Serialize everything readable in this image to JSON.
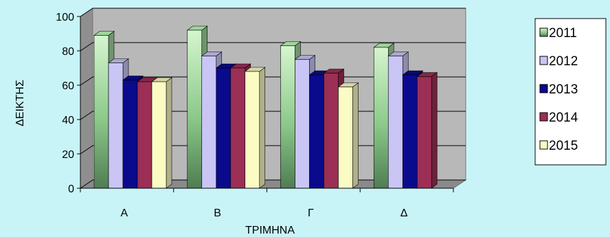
{
  "chart_data": {
    "type": "bar",
    "title": "",
    "xlabel": "ΤΡΙΜΗΝΑ",
    "ylabel": "ΔΕΙΚΤΗΣ",
    "ylim": [
      0,
      100
    ],
    "yticks": [
      0,
      20,
      40,
      60,
      80,
      100
    ],
    "categories": [
      "Α",
      "Β",
      "Γ",
      "Δ"
    ],
    "series": [
      {
        "name": "2011",
        "values": [
          89,
          92,
          83,
          82
        ]
      },
      {
        "name": "2012",
        "values": [
          73,
          77,
          75,
          77
        ]
      },
      {
        "name": "2013",
        "values": [
          63,
          70,
          66,
          66
        ]
      },
      {
        "name": "2014",
        "values": [
          62,
          70,
          67,
          65
        ]
      },
      {
        "name": "2015",
        "values": [
          62,
          68,
          59,
          null
        ]
      }
    ],
    "grid": true,
    "legend_position": "right",
    "series_colors": [
      "#9fd49c",
      "#c9c6f5",
      "#0a0a8c",
      "#9b2f55",
      "#fbfbc4"
    ],
    "plot_background": "#b8b8b8"
  }
}
